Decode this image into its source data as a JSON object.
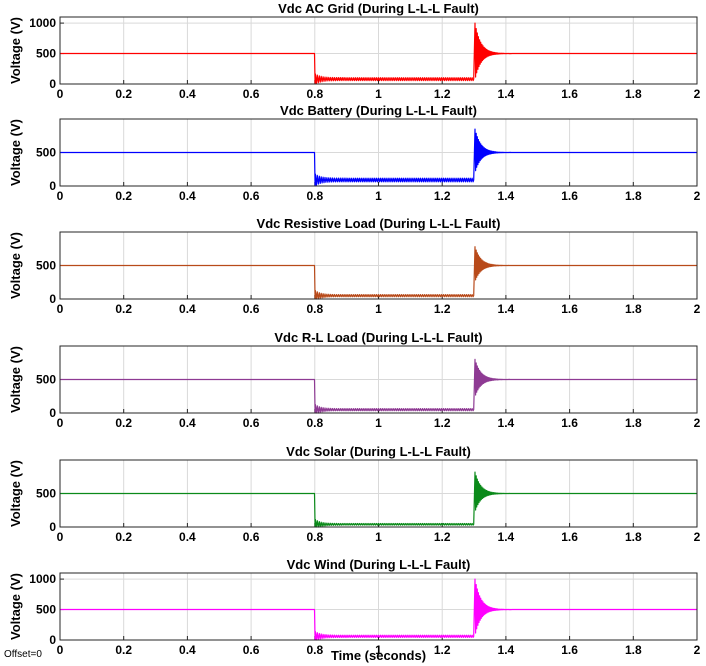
{
  "figure": {
    "xlabel": "Time (seconds)",
    "offset_label": "Offset=0"
  },
  "chart_data": [
    {
      "type": "line",
      "title": "Vdc AC Grid (During L-L-L Fault)",
      "ylabel": "Voltage (V)",
      "color": "#ff0000",
      "xlim": [
        0,
        2
      ],
      "ylim": [
        0,
        1100
      ],
      "yticks": [
        0,
        500,
        1000
      ],
      "xticks": [
        0,
        0.2,
        0.4,
        0.6,
        0.8,
        1,
        1.2,
        1.4,
        1.6,
        1.8,
        2
      ],
      "grid": true,
      "series": [
        {
          "x": [
            0,
            0.799,
            0.801,
            0.81,
            1.0,
            1.299,
            1.31,
            1.33,
            1.36,
            1.4,
            2.0
          ],
          "y": [
            500,
            500,
            0,
            80,
            75,
            80,
            1000,
            800,
            600,
            500,
            500
          ]
        }
      ]
    },
    {
      "type": "line",
      "title": "Vdc Battery (During L-L-L Fault)",
      "ylabel": "Voltage (V)",
      "color": "#0000ff",
      "xlim": [
        0,
        2
      ],
      "ylim": [
        0,
        1000
      ],
      "yticks": [
        0,
        500
      ],
      "xticks": [
        0,
        0.2,
        0.4,
        0.6,
        0.8,
        1,
        1.2,
        1.4,
        1.6,
        1.8,
        2
      ],
      "grid": true,
      "series": [
        {
          "x": [
            0,
            0.799,
            0.801,
            0.81,
            1.0,
            1.299,
            1.31,
            1.33,
            1.36,
            1.4,
            2.0
          ],
          "y": [
            500,
            500,
            0,
            90,
            90,
            90,
            850,
            650,
            550,
            500,
            500
          ]
        }
      ]
    },
    {
      "type": "line",
      "title": "Vdc Resistive Load (During L-L-L Fault)",
      "ylabel": "Voltage (V)",
      "color": "#b84a1a",
      "xlim": [
        0,
        2
      ],
      "ylim": [
        0,
        1000
      ],
      "yticks": [
        0,
        500
      ],
      "xticks": [
        0,
        0.2,
        0.4,
        0.6,
        0.8,
        1,
        1.2,
        1.4,
        1.6,
        1.8,
        2
      ],
      "grid": true,
      "series": [
        {
          "x": [
            0,
            0.799,
            0.801,
            0.81,
            1.0,
            1.299,
            1.31,
            1.33,
            1.36,
            1.4,
            2.0
          ],
          "y": [
            500,
            500,
            0,
            50,
            50,
            50,
            780,
            650,
            550,
            500,
            500
          ]
        }
      ]
    },
    {
      "type": "line",
      "title": "Vdc R-L Load (During L-L-L Fault)",
      "ylabel": "Voltage (V)",
      "color": "#8e3a93",
      "xlim": [
        0,
        2
      ],
      "ylim": [
        0,
        1000
      ],
      "yticks": [
        0,
        500
      ],
      "xticks": [
        0,
        0.2,
        0.4,
        0.6,
        0.8,
        1,
        1.2,
        1.4,
        1.6,
        1.8,
        2
      ],
      "grid": true,
      "series": [
        {
          "x": [
            0,
            0.799,
            0.801,
            0.81,
            1.0,
            1.299,
            1.31,
            1.33,
            1.36,
            1.4,
            2.0
          ],
          "y": [
            500,
            500,
            0,
            50,
            50,
            50,
            800,
            650,
            550,
            500,
            500
          ]
        }
      ]
    },
    {
      "type": "line",
      "title": "Vdc Solar (During L-L-L Fault)",
      "ylabel": "Voltage (V)",
      "color": "#0b8a1a",
      "xlim": [
        0,
        2
      ],
      "ylim": [
        0,
        1000
      ],
      "yticks": [
        0,
        500
      ],
      "xticks": [
        0,
        0.2,
        0.4,
        0.6,
        0.8,
        1,
        1.2,
        1.4,
        1.6,
        1.8,
        2
      ],
      "grid": true,
      "series": [
        {
          "x": [
            0,
            0.799,
            0.801,
            0.81,
            1.0,
            1.299,
            1.31,
            1.33,
            1.36,
            1.4,
            2.0
          ],
          "y": [
            500,
            500,
            0,
            40,
            40,
            40,
            820,
            680,
            570,
            500,
            500
          ]
        }
      ]
    },
    {
      "type": "line",
      "title": "Vdc Wind (During L-L-L Fault)",
      "ylabel": "Voltage (V)",
      "color": "#ff00ff",
      "xlim": [
        0,
        2
      ],
      "ylim": [
        0,
        1100
      ],
      "yticks": [
        0,
        500,
        1000
      ],
      "xticks": [
        0,
        0.2,
        0.4,
        0.6,
        0.8,
        1,
        1.2,
        1.4,
        1.6,
        1.8,
        2
      ],
      "grid": true,
      "series": [
        {
          "x": [
            0,
            0.799,
            0.801,
            0.81,
            1.0,
            1.299,
            1.31,
            1.33,
            1.36,
            1.4,
            2.0
          ],
          "y": [
            500,
            500,
            0,
            60,
            60,
            60,
            1000,
            750,
            580,
            500,
            500
          ]
        }
      ]
    }
  ]
}
